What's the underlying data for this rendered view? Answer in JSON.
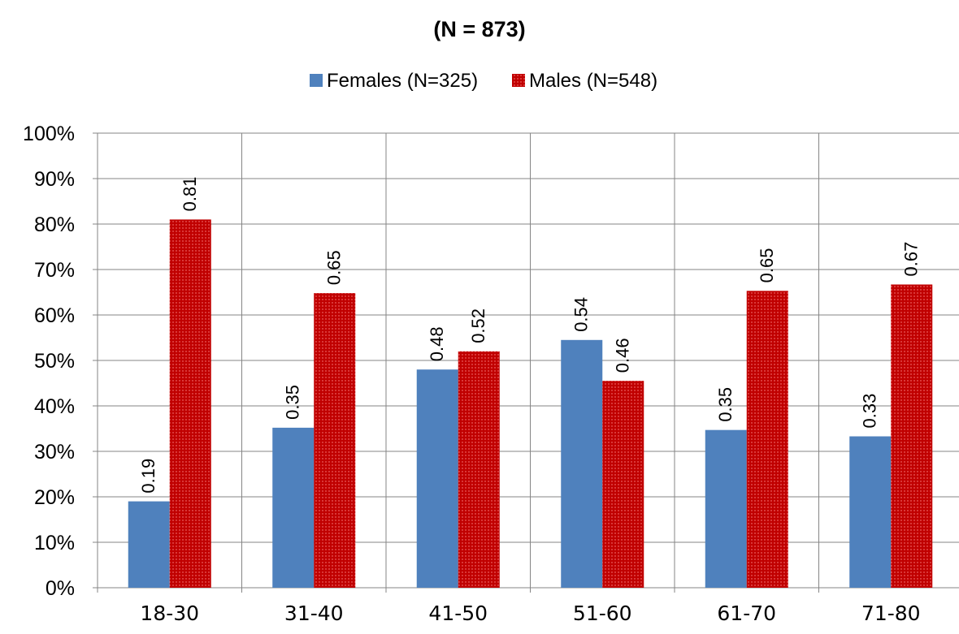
{
  "chart_data": {
    "type": "bar",
    "title": "(N = 873)",
    "xlabel": "",
    "ylabel": "",
    "categories": [
      "18-30",
      "31-40",
      "41-50",
      "51-60",
      "61-70",
      "71-80"
    ],
    "series": [
      {
        "name": "Females (N=325)",
        "color": "#4F81BD",
        "values": [
          0.19,
          0.352,
          0.48,
          0.545,
          0.347,
          0.333
        ],
        "labels": [
          "0.19",
          "0.35",
          "0.48",
          "0.54",
          "0.35",
          "0.33"
        ]
      },
      {
        "name": "Males (N=548)",
        "color": "#C00000",
        "values": [
          0.81,
          0.648,
          0.52,
          0.455,
          0.653,
          0.667
        ],
        "labels": [
          "0.81",
          "0.65",
          "0.52",
          "0.46",
          "0.65",
          "0.67"
        ]
      }
    ],
    "ylim": [
      0,
      1
    ],
    "yticks": [
      "0%",
      "10%",
      "20%",
      "30%",
      "40%",
      "50%",
      "60%",
      "70%",
      "80%",
      "90%",
      "100%"
    ],
    "grid": true,
    "legend": "top-center"
  }
}
